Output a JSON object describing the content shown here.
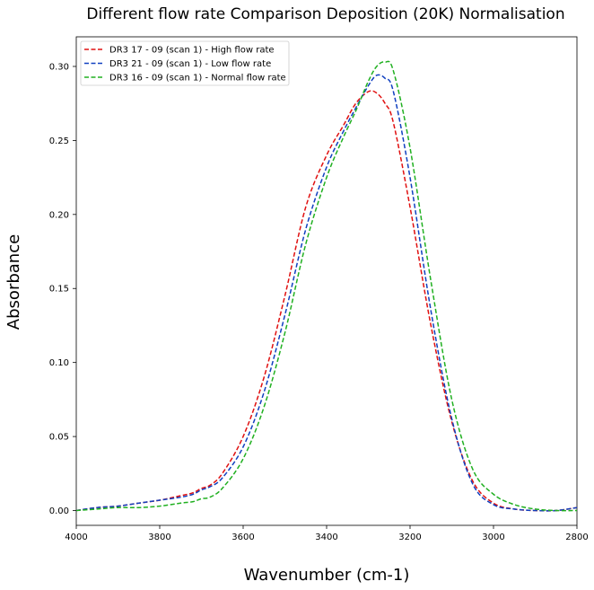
{
  "chart_data": {
    "type": "line",
    "title": "Different flow rate Comparison Deposition (20K) Normalisation",
    "xlabel": "Wavenumber (cm-1)",
    "ylabel": "Absorbance",
    "xlim": [
      4000,
      2800
    ],
    "ylim": [
      -0.01,
      0.32
    ],
    "x_reversed": true,
    "grid": false,
    "legend_position": "top-left",
    "xticks": [
      4000,
      3800,
      3600,
      3400,
      3200,
      3000,
      2800
    ],
    "xtick_labels": [
      "4000",
      "3800",
      "3600",
      "3400",
      "3200",
      "3000",
      "2800"
    ],
    "yticks": [
      0.0,
      0.05,
      0.1,
      0.15,
      0.2,
      0.25,
      0.3
    ],
    "ytick_labels": [
      "0.00",
      "0.05",
      "0.10",
      "0.15",
      "0.20",
      "0.25",
      "0.30"
    ],
    "series": [
      {
        "name": "DR3 17 - 09 (scan 1) - High flow rate",
        "color": "#e01010",
        "x": [
          4000,
          3950,
          3900,
          3850,
          3800,
          3750,
          3720,
          3700,
          3680,
          3650,
          3600,
          3550,
          3500,
          3450,
          3400,
          3360,
          3330,
          3300,
          3280,
          3260,
          3240,
          3200,
          3150,
          3100,
          3050,
          3000,
          2950,
          2900,
          2850,
          2800
        ],
        "y": [
          0.0,
          0.002,
          0.003,
          0.005,
          0.007,
          0.01,
          0.012,
          0.015,
          0.017,
          0.025,
          0.05,
          0.09,
          0.145,
          0.205,
          0.24,
          0.26,
          0.275,
          0.283,
          0.282,
          0.275,
          0.262,
          0.205,
          0.125,
          0.06,
          0.02,
          0.005,
          0.001,
          0.0,
          0.0,
          0.002
        ]
      },
      {
        "name": "DR3 21 - 09 (scan 1) - Low flow rate",
        "color": "#1040c0",
        "x": [
          4000,
          3950,
          3900,
          3850,
          3800,
          3750,
          3720,
          3700,
          3680,
          3650,
          3600,
          3550,
          3500,
          3450,
          3400,
          3360,
          3330,
          3300,
          3280,
          3260,
          3240,
          3200,
          3150,
          3100,
          3050,
          3000,
          2950,
          2900,
          2850,
          2800
        ],
        "y": [
          0.0,
          0.002,
          0.003,
          0.005,
          0.007,
          0.009,
          0.011,
          0.014,
          0.016,
          0.022,
          0.043,
          0.08,
          0.132,
          0.19,
          0.232,
          0.256,
          0.272,
          0.287,
          0.294,
          0.292,
          0.283,
          0.225,
          0.135,
          0.062,
          0.018,
          0.004,
          0.001,
          0.0,
          0.0,
          0.002
        ]
      },
      {
        "name": "DR3 16 - 09 (scan 1) - Normal flow rate",
        "color": "#20b020",
        "x": [
          4000,
          3950,
          3900,
          3850,
          3800,
          3750,
          3720,
          3700,
          3680,
          3650,
          3600,
          3550,
          3500,
          3450,
          3400,
          3360,
          3330,
          3300,
          3280,
          3260,
          3240,
          3200,
          3150,
          3100,
          3050,
          3000,
          2950,
          2900,
          2850,
          2800
        ],
        "y": [
          0.0,
          0.001,
          0.002,
          0.002,
          0.003,
          0.005,
          0.006,
          0.008,
          0.009,
          0.015,
          0.035,
          0.07,
          0.12,
          0.18,
          0.225,
          0.252,
          0.27,
          0.29,
          0.3,
          0.303,
          0.297,
          0.245,
          0.155,
          0.075,
          0.028,
          0.011,
          0.004,
          0.001,
          0.0,
          0.0
        ]
      }
    ]
  }
}
